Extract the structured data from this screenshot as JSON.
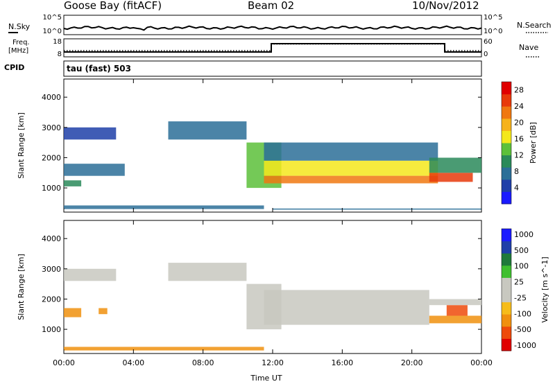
{
  "header": {
    "station": "Goose Bay (fitACF)",
    "beam": "Beam 02",
    "date": "10/Nov/2012"
  },
  "top_panels": {
    "nsky_label": "N.Sky",
    "nsearch_label": "N.Search",
    "noise_ticks": [
      "10^5",
      "10^0"
    ],
    "freq_label": "Freq.",
    "freq_unit": "[MHz]",
    "freq_ticks": [
      "18",
      "8"
    ],
    "nave_label": "Nave",
    "nave_ticks": [
      "60",
      "0"
    ],
    "cpid_label": "CPID",
    "cpid_text": "tau (fast) 503"
  },
  "colors": {
    "power_scale": [
      "#1a1aff",
      "#1f3fa8",
      "#2b6f98",
      "#2a8a5a",
      "#5cc03a",
      "#f4e81c",
      "#f6b21a",
      "#f07810",
      "#e83a0a",
      "#e00000"
    ],
    "velocity_scale": [
      "#e00000",
      "#ee4a0a",
      "#f0900e",
      "#f6bc1a",
      "#c8c8c0",
      "#c8c8c0",
      "#3fbf2f",
      "#1f7a3a",
      "#1f3fa8",
      "#1a1aff"
    ]
  },
  "chart_data": [
    {
      "type": "heatmap",
      "name": "power",
      "ylabel": "Slant Range [km]",
      "xlabel": "",
      "x_ticks": [
        "00:00",
        "04:00",
        "08:00",
        "12:00",
        "16:00",
        "20:00",
        "00:00"
      ],
      "y_ticks": [
        1000,
        2000,
        3000,
        4000
      ],
      "x_range_hours": [
        0,
        24
      ],
      "ylim": [
        200,
        4600
      ],
      "colorbar": {
        "label": "Power [dB]",
        "ticks": [
          4,
          8,
          12,
          16,
          20,
          24,
          28
        ],
        "range": [
          0,
          30
        ]
      },
      "regions": [
        {
          "t": [
            0.0,
            11.5
          ],
          "r": [
            300,
            420
          ],
          "v": 8
        },
        {
          "t": [
            0.0,
            1.0
          ],
          "r": [
            1050,
            1250
          ],
          "v": 11
        },
        {
          "t": [
            0.0,
            3.5
          ],
          "r": [
            1400,
            1800
          ],
          "v": 7
        },
        {
          "t": [
            0.0,
            3.0
          ],
          "r": [
            2600,
            3000
          ],
          "v": 5
        },
        {
          "t": [
            6.0,
            10.5
          ],
          "r": [
            2600,
            3200
          ],
          "v": 6
        },
        {
          "t": [
            10.5,
            12.5
          ],
          "r": [
            1000,
            2500
          ],
          "v": 12
        },
        {
          "t": [
            11.5,
            21.5
          ],
          "r": [
            1150,
            1400
          ],
          "v": 22
        },
        {
          "t": [
            11.5,
            21.5
          ],
          "r": [
            1400,
            1900
          ],
          "v": 15
        },
        {
          "t": [
            11.5,
            21.5
          ],
          "r": [
            1900,
            2500
          ],
          "v": 8
        },
        {
          "t": [
            21.0,
            23.5
          ],
          "r": [
            1200,
            1500
          ],
          "v": 25
        },
        {
          "t": [
            21.0,
            24.0
          ],
          "r": [
            1500,
            2000
          ],
          "v": 10
        },
        {
          "t": [
            12.0,
            24.0
          ],
          "r": [
            280,
            320
          ],
          "v": 6
        }
      ]
    },
    {
      "type": "heatmap",
      "name": "velocity",
      "ylabel": "Slant Range [km]",
      "xlabel": "Time UT",
      "x_ticks": [
        "00:00",
        "04:00",
        "08:00",
        "12:00",
        "16:00",
        "20:00",
        "00:00"
      ],
      "y_ticks": [
        1000,
        2000,
        3000,
        4000
      ],
      "x_range_hours": [
        0,
        24
      ],
      "ylim": [
        200,
        4600
      ],
      "colorbar": {
        "label": "Velocity [m s^-1]",
        "ticks": [
          1000,
          500,
          100,
          25,
          -25,
          -100,
          -500,
          -1000
        ]
      },
      "regions": [
        {
          "t": [
            0.0,
            11.5
          ],
          "r": [
            300,
            420
          ],
          "v": -150
        },
        {
          "t": [
            0.0,
            1.0
          ],
          "r": [
            1400,
            1700
          ],
          "v": -200
        },
        {
          "t": [
            2.0,
            2.5
          ],
          "r": [
            1500,
            1700
          ],
          "v": -120
        },
        {
          "t": [
            0.0,
            3.0
          ],
          "r": [
            2600,
            3000
          ],
          "v": 20
        },
        {
          "t": [
            6.0,
            10.5
          ],
          "r": [
            2600,
            3200
          ],
          "v": 10
        },
        {
          "t": [
            10.5,
            12.5
          ],
          "r": [
            1000,
            2500
          ],
          "v": 5
        },
        {
          "t": [
            11.5,
            21.0
          ],
          "r": [
            1150,
            2300
          ],
          "v": 0
        },
        {
          "t": [
            21.0,
            24.0
          ],
          "r": [
            1200,
            1450
          ],
          "v": -300
        },
        {
          "t": [
            22.0,
            23.2
          ],
          "r": [
            1450,
            1800
          ],
          "v": -800
        },
        {
          "t": [
            21.0,
            24.0
          ],
          "r": [
            1800,
            2000
          ],
          "v": 10
        }
      ]
    }
  ]
}
